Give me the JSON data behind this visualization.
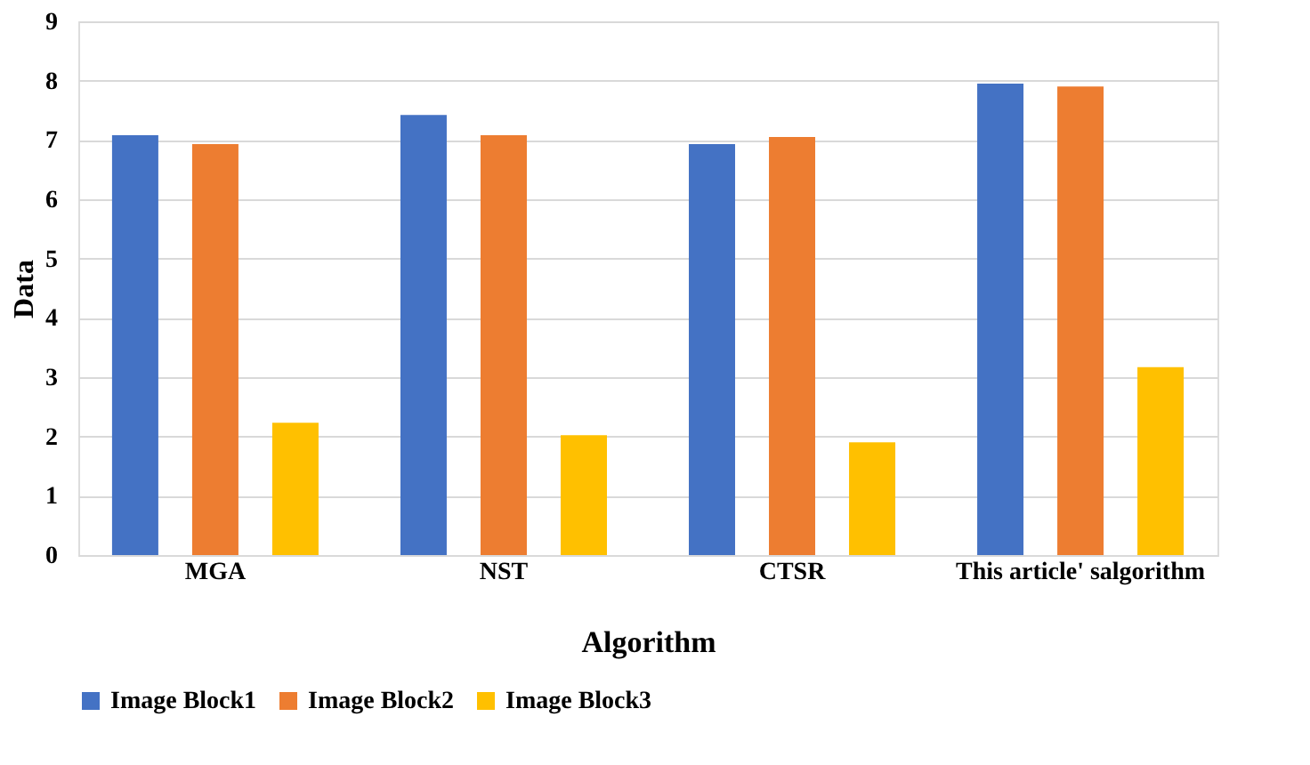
{
  "chart_data": {
    "type": "bar",
    "xlabel": "Algorithm",
    "ylabel": "Data",
    "categories": [
      "MGA",
      "NST",
      "CTSR",
      "This article' salgorithm"
    ],
    "series": [
      {
        "name": "Image Block1",
        "color": "#4472c4",
        "values": [
          7.08,
          7.42,
          6.93,
          7.95
        ]
      },
      {
        "name": "Image Block2",
        "color": "#ed7d31",
        "values": [
          6.93,
          7.08,
          7.05,
          7.9
        ]
      },
      {
        "name": "Image Block3",
        "color": "#ffc000",
        "values": [
          2.23,
          2.02,
          1.9,
          3.17
        ]
      }
    ],
    "ylim": [
      0,
      9
    ],
    "yticks": [
      0,
      1,
      2,
      3,
      4,
      5,
      6,
      7,
      8,
      9
    ],
    "grid": "y",
    "legend": "bottom"
  }
}
